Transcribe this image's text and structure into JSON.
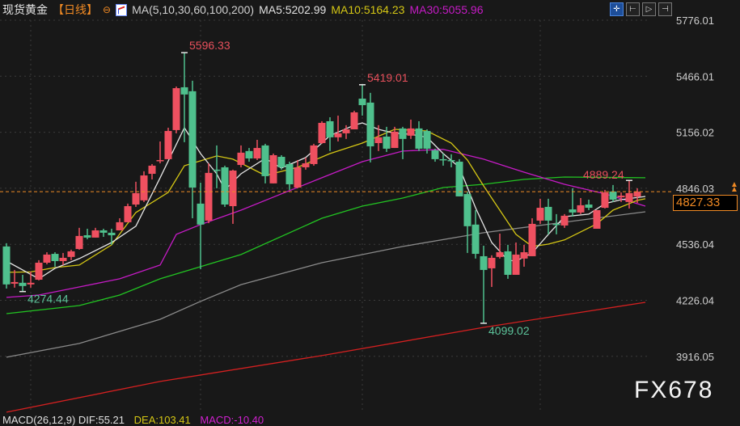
{
  "header": {
    "title": "现货黄金",
    "period": "【日线】",
    "params": "MA(5,10,30,60,100,200)",
    "ma5": "MA5:5202.99",
    "ma10": "MA10:5164.23",
    "ma30": "MA30:5055.96"
  },
  "toolbar": [
    {
      "icon": "crosshair-icon",
      "glyph": "✛",
      "active": true
    },
    {
      "icon": "chart-left-icon",
      "glyph": "⊢"
    },
    {
      "icon": "chart-play-icon",
      "glyph": "▷"
    },
    {
      "icon": "chart-right-icon",
      "glyph": "⊣"
    }
  ],
  "current_price": "4827.33",
  "watermark": "FX678",
  "macd": {
    "params": "MACD(26,12,9) DIF:55.21",
    "dea": "DEA:103.41",
    "macd": "MACD:-10.40"
  },
  "chart_data": {
    "type": "candlestick",
    "title": "",
    "y_ticks": [
      "5776.01",
      "5466.01",
      "5156.02",
      "4846.03",
      "4536.04",
      "4226.04",
      "3916.05"
    ],
    "ylim": [
      3570,
      5820
    ],
    "grid": true,
    "current_price": 4827.33,
    "colors": {
      "up": "#ef5060",
      "down": "#4fc08d",
      "ma5": "#e6e6e6",
      "ma10": "#d4c614",
      "ma30": "#c61bc6",
      "ma60": "#22c422",
      "ma100": "#8a8a8a",
      "ma200": "#d42020",
      "price_line": "#f08a24"
    },
    "ohlc": [
      [
        4524,
        4542,
        4291,
        4314
      ],
      [
        4318,
        4394,
        4296,
        4327
      ],
      [
        4323,
        4367,
        4274.44,
        4305
      ],
      [
        4314,
        4385,
        4296,
        4323
      ],
      [
        4340,
        4448,
        4336,
        4434
      ],
      [
        4434,
        4492,
        4425,
        4479
      ],
      [
        4483,
        4492,
        4412,
        4443
      ],
      [
        4443,
        4488,
        4421,
        4461
      ],
      [
        4466,
        4506,
        4448,
        4497
      ],
      [
        4510,
        4627,
        4506,
        4582
      ],
      [
        4586,
        4622,
        4564,
        4573
      ],
      [
        4573,
        4627,
        4573,
        4613
      ],
      [
        4613,
        4622,
        4577,
        4600
      ],
      [
        4600,
        4622,
        4533,
        4586
      ],
      [
        4613,
        4680,
        4613,
        4658
      ],
      [
        4658,
        4761,
        4658,
        4747
      ],
      [
        4756,
        4882,
        4743,
        4819
      ],
      [
        4779,
        4940,
        4770,
        4917
      ],
      [
        4926,
        4980,
        4895,
        4971
      ],
      [
        4998,
        5105,
        4984,
        5002
      ],
      [
        5007,
        5181,
        5007,
        5163
      ],
      [
        5168,
        5409,
        5150,
        5400
      ],
      [
        5405,
        5596.33,
        5101,
        5365
      ],
      [
        5383,
        5441,
        4680,
        4850
      ],
      [
        4761,
        4877,
        4398,
        4645
      ],
      [
        4667,
        4984,
        4653,
        4931
      ],
      [
        4949,
        5083,
        4846,
        4944
      ],
      [
        4962,
        4971,
        4743,
        4756
      ],
      [
        4747,
        4949,
        4649,
        4944
      ],
      [
        4975,
        5083,
        4962,
        5043
      ],
      [
        5052,
        5069,
        4993,
        5011
      ],
      [
        5011,
        5114,
        5002,
        5069
      ],
      [
        5083,
        5092,
        4873,
        4913
      ],
      [
        4873,
        5038,
        4873,
        5029
      ],
      [
        5020,
        5029,
        4949,
        4962
      ],
      [
        4980,
        4993,
        4837,
        4868
      ],
      [
        4850,
        5002,
        4846,
        4962
      ],
      [
        4962,
        5016,
        4949,
        4984
      ],
      [
        4980,
        5092,
        4971,
        5083
      ],
      [
        5096,
        5217,
        5092,
        5208
      ],
      [
        5217,
        5239,
        5052,
        5128
      ],
      [
        5128,
        5248,
        5105,
        5150
      ],
      [
        5150,
        5195,
        5119,
        5172
      ],
      [
        5172,
        5275,
        5172,
        5266
      ],
      [
        5342,
        5419.01,
        5248,
        5306
      ],
      [
        5320,
        5374,
        4989,
        5078
      ],
      [
        5096,
        5195,
        5052,
        5128
      ],
      [
        5132,
        5186,
        5047,
        5065
      ],
      [
        5069,
        5186,
        5069,
        5159
      ],
      [
        5177,
        5186,
        5007,
        5119
      ],
      [
        5137,
        5226,
        5119,
        5177
      ],
      [
        5177,
        5217,
        5052,
        5065
      ],
      [
        5163,
        5172,
        5038,
        5065
      ],
      [
        5056,
        5065,
        4993,
        5007
      ],
      [
        5007,
        5038,
        4971,
        5002
      ],
      [
        5002,
        5034,
        4962,
        4998
      ],
      [
        4993,
        5007,
        4801,
        4801
      ],
      [
        4814,
        4828,
        4488,
        4636
      ],
      [
        4645,
        4725,
        4457,
        4483
      ],
      [
        4470,
        4528,
        4099.02,
        4394
      ],
      [
        4403,
        4475,
        4300,
        4461
      ],
      [
        4466,
        4595,
        4457,
        4492
      ],
      [
        4497,
        4533,
        4345,
        4367
      ],
      [
        4367,
        4546,
        4367,
        4479
      ],
      [
        4457,
        4533,
        4412,
        4492
      ],
      [
        4470,
        4680,
        4470,
        4649
      ],
      [
        4667,
        4788,
        4649,
        4738
      ],
      [
        4743,
        4788,
        4591,
        4667
      ],
      [
        4649,
        4703,
        4591,
        4645
      ],
      [
        4640,
        4703,
        4627,
        4694
      ],
      [
        4729,
        4846,
        4689,
        4712
      ],
      [
        4712,
        4792,
        4703,
        4752
      ],
      [
        4756,
        4783,
        4725,
        4738
      ],
      [
        4622,
        4725,
        4622,
        4725
      ],
      [
        4738,
        4837,
        4734,
        4823
      ],
      [
        4828,
        4864,
        4770,
        4783
      ],
      [
        4796,
        4823,
        4770,
        4805
      ],
      [
        4770,
        4889.24,
        4734,
        4819
      ],
      [
        4800,
        4846,
        4765,
        4827.33
      ]
    ],
    "ma_lines": {
      "ma5": [
        [
          0,
          4443
        ],
        [
          4,
          4345
        ],
        [
          6,
          4403
        ],
        [
          9,
          4457
        ],
        [
          13,
          4546
        ],
        [
          16,
          4636
        ],
        [
          19,
          4904
        ],
        [
          22,
          5181
        ],
        [
          24,
          5038
        ],
        [
          26,
          4926
        ],
        [
          27,
          4837
        ],
        [
          29,
          4926
        ],
        [
          32,
          5011
        ],
        [
          34,
          4958
        ],
        [
          37,
          5016
        ],
        [
          40,
          5137
        ],
        [
          43,
          5195
        ],
        [
          44,
          5208
        ],
        [
          46,
          5172
        ],
        [
          48,
          5150
        ],
        [
          50,
          5145
        ],
        [
          52,
          5128
        ],
        [
          54,
          5038
        ],
        [
          56,
          4962
        ],
        [
          58,
          4738
        ],
        [
          60,
          4546
        ],
        [
          62,
          4448
        ],
        [
          63,
          4443
        ],
        [
          65,
          4488
        ],
        [
          67,
          4591
        ],
        [
          69,
          4689
        ],
        [
          72,
          4703
        ],
        [
          74,
          4761
        ],
        [
          76,
          4783
        ],
        [
          79,
          4801
        ]
      ],
      "ma10": [
        [
          0,
          4381
        ],
        [
          3,
          4383
        ],
        [
          6,
          4407
        ],
        [
          9,
          4421
        ],
        [
          13,
          4533
        ],
        [
          16,
          4712
        ],
        [
          20,
          4823
        ],
        [
          22,
          4971
        ],
        [
          26,
          5025
        ],
        [
          28,
          5007
        ],
        [
          32,
          4917
        ],
        [
          36,
          4962
        ],
        [
          40,
          5038
        ],
        [
          44,
          5096
        ],
        [
          48,
          5172
        ],
        [
          52,
          5163
        ],
        [
          55,
          5096
        ],
        [
          57,
          5002
        ],
        [
          59,
          4859
        ],
        [
          61,
          4725
        ],
        [
          63,
          4591
        ],
        [
          65,
          4524
        ],
        [
          67,
          4537
        ],
        [
          69,
          4560
        ],
        [
          73,
          4649
        ],
        [
          75,
          4725
        ],
        [
          78,
          4779
        ],
        [
          79,
          4788
        ]
      ],
      "ma30": [
        [
          0,
          4242
        ],
        [
          4,
          4255
        ],
        [
          9,
          4300
        ],
        [
          14,
          4345
        ],
        [
          19,
          4421
        ],
        [
          21,
          4591
        ],
        [
          24,
          4645
        ],
        [
          29,
          4725
        ],
        [
          34,
          4815
        ],
        [
          39,
          4904
        ],
        [
          44,
          4993
        ],
        [
          49,
          5052
        ],
        [
          51,
          5056
        ],
        [
          54,
          5061
        ],
        [
          59,
          5007
        ],
        [
          64,
          4935
        ],
        [
          69,
          4868
        ],
        [
          74,
          4815
        ],
        [
          79,
          4747
        ]
      ],
      "ma60": [
        [
          0,
          4152
        ],
        [
          9,
          4197
        ],
        [
          14,
          4255
        ],
        [
          19,
          4345
        ],
        [
          24,
          4412
        ],
        [
          29,
          4479
        ],
        [
          39,
          4680
        ],
        [
          44,
          4747
        ],
        [
          49,
          4792
        ],
        [
          54,
          4850
        ],
        [
          59,
          4868
        ],
        [
          64,
          4895
        ],
        [
          69,
          4908
        ],
        [
          79,
          4904
        ]
      ],
      "ma100": [
        [
          0,
          3911
        ],
        [
          9,
          3987
        ],
        [
          19,
          4121
        ],
        [
          24,
          4220
        ],
        [
          29,
          4313
        ],
        [
          39,
          4434
        ],
        [
          49,
          4524
        ],
        [
          59,
          4600
        ],
        [
          69,
          4658
        ],
        [
          79,
          4716
        ]
      ],
      "ma200": [
        [
          0,
          3607
        ],
        [
          19,
          3777
        ],
        [
          39,
          3920
        ],
        [
          59,
          4076
        ],
        [
          79,
          4215
        ]
      ]
    },
    "annotations": [
      {
        "index": 22,
        "value": 5596.33,
        "text": "5596.33",
        "kind": "high"
      },
      {
        "index": 44,
        "value": 5419.01,
        "text": "5419.01",
        "kind": "high"
      },
      {
        "index": 77,
        "value": 4889.24,
        "text": "4889.24",
        "kind": "high"
      },
      {
        "index": 2,
        "value": 4274.44,
        "text": "4274.44",
        "kind": "low"
      },
      {
        "index": 59,
        "value": 4099.02,
        "text": "4099.02",
        "kind": "low"
      }
    ]
  }
}
